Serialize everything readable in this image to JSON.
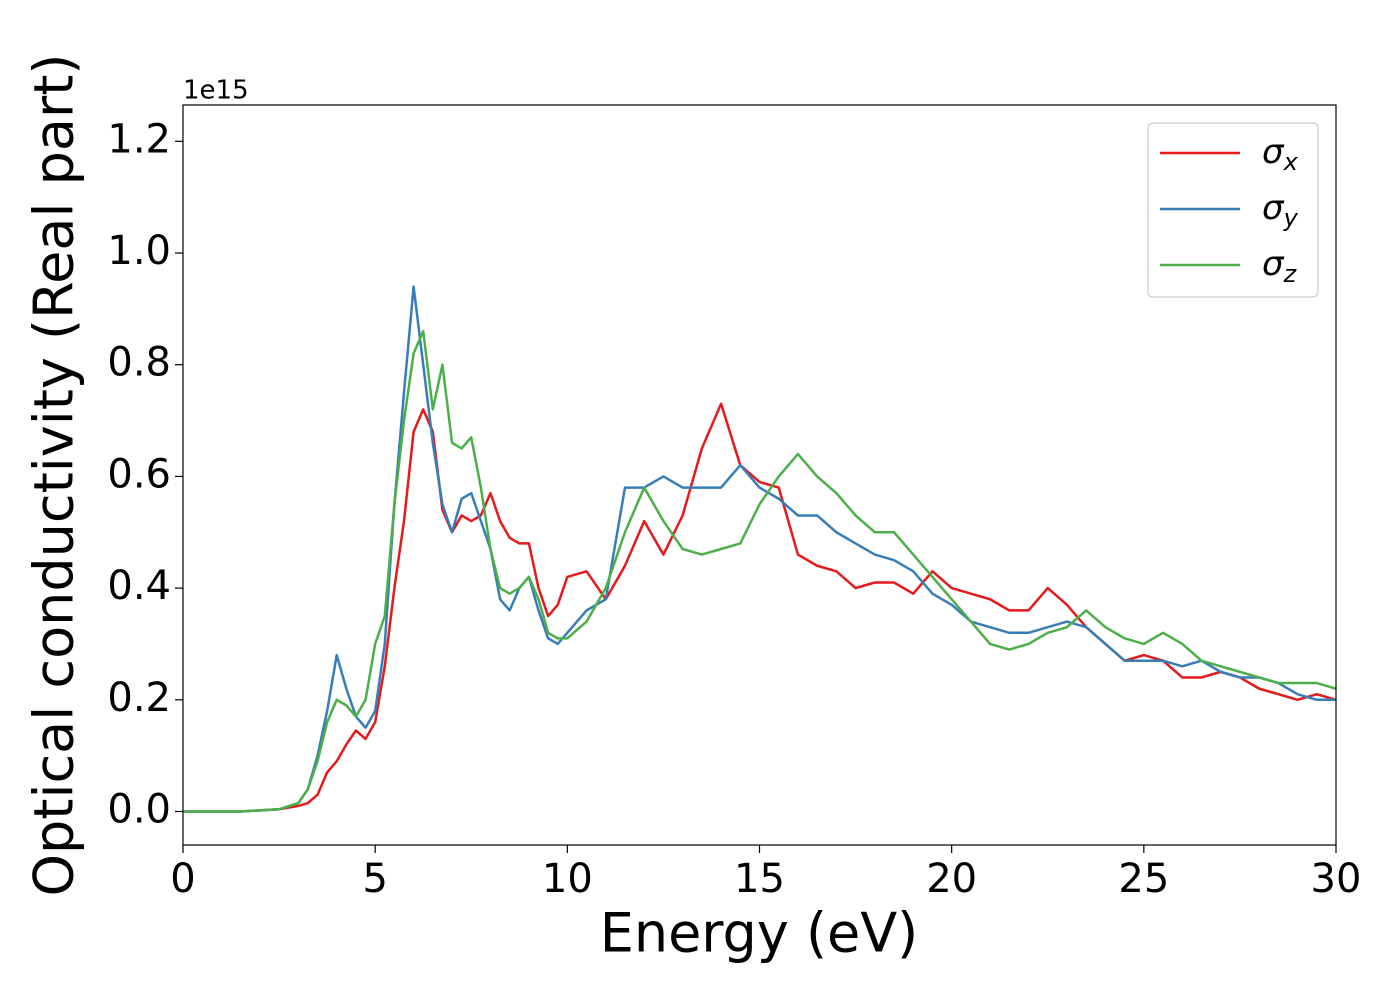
{
  "chart_data": {
    "type": "line",
    "xlabel": "Energy (eV)",
    "ylabel": "Optical conductivity (Real part)",
    "y_offset_label": "1e15",
    "xlim": [
      0,
      30
    ],
    "ylim": [
      -0.06,
      1.265
    ],
    "xticks": [
      0,
      5,
      10,
      15,
      20,
      25,
      30
    ],
    "yticks": [
      {
        "value": 0,
        "label": "0.0"
      },
      0.2,
      0.4,
      0.6,
      0.8,
      {
        "value": 1,
        "label": "1.0"
      },
      1.2
    ],
    "legend": "upper right",
    "x": [
      0,
      0.5,
      1,
      1.5,
      2,
      2.5,
      3,
      3.25,
      3.5,
      3.75,
      4,
      4.25,
      4.5,
      4.75,
      5,
      5.25,
      5.5,
      5.75,
      6,
      6.25,
      6.5,
      6.75,
      7,
      7.25,
      7.5,
      7.75,
      8,
      8.25,
      8.5,
      8.75,
      9,
      9.25,
      9.5,
      9.75,
      10,
      10.5,
      11,
      11.5,
      12,
      12.5,
      13,
      13.5,
      14,
      14.5,
      15,
      15.5,
      16,
      16.5,
      17,
      17.5,
      18,
      18.5,
      19,
      19.5,
      20,
      20.5,
      21,
      21.5,
      22,
      22.5,
      23,
      23.5,
      24,
      24.5,
      25,
      25.5,
      26,
      26.5,
      27,
      27.5,
      28,
      28.5,
      29,
      29.5,
      30
    ],
    "series": [
      {
        "name": "σx",
        "color": "#e41a1c",
        "values": [
          0,
          0,
          0,
          0,
          0.002,
          0.004,
          0.01,
          0.015,
          0.03,
          0.07,
          0.09,
          0.12,
          0.145,
          0.13,
          0.16,
          0.26,
          0.4,
          0.52,
          0.68,
          0.72,
          0.68,
          0.54,
          0.5,
          0.53,
          0.52,
          0.53,
          0.57,
          0.52,
          0.49,
          0.48,
          0.48,
          0.4,
          0.35,
          0.37,
          0.42,
          0.43,
          0.38,
          0.44,
          0.52,
          0.46,
          0.53,
          0.65,
          0.73,
          0.62,
          0.59,
          0.58,
          0.46,
          0.44,
          0.43,
          0.4,
          0.41,
          0.41,
          0.39,
          0.43,
          0.4,
          0.39,
          0.38,
          0.36,
          0.36,
          0.4,
          0.37,
          0.33,
          0.3,
          0.27,
          0.28,
          0.27,
          0.24,
          0.24,
          0.25,
          0.24,
          0.22,
          0.21,
          0.2,
          0.21,
          0.2
        ]
      },
      {
        "name": "σy",
        "color": "#377eb8",
        "values": [
          0,
          0,
          0,
          0,
          0.002,
          0.004,
          0.015,
          0.04,
          0.1,
          0.18,
          0.28,
          0.22,
          0.17,
          0.15,
          0.18,
          0.3,
          0.55,
          0.75,
          0.94,
          0.8,
          0.66,
          0.55,
          0.5,
          0.56,
          0.57,
          0.52,
          0.47,
          0.38,
          0.36,
          0.4,
          0.42,
          0.36,
          0.31,
          0.3,
          0.32,
          0.36,
          0.38,
          0.58,
          0.58,
          0.6,
          0.58,
          0.58,
          0.58,
          0.62,
          0.58,
          0.56,
          0.53,
          0.53,
          0.5,
          0.48,
          0.46,
          0.45,
          0.43,
          0.39,
          0.37,
          0.34,
          0.33,
          0.32,
          0.32,
          0.33,
          0.34,
          0.33,
          0.3,
          0.27,
          0.27,
          0.27,
          0.26,
          0.27,
          0.25,
          0.24,
          0.24,
          0.23,
          0.21,
          0.2,
          0.2
        ]
      },
      {
        "name": "σz",
        "color": "#4daf4a",
        "values": [
          0,
          0,
          0,
          0,
          0.002,
          0.004,
          0.015,
          0.04,
          0.09,
          0.16,
          0.2,
          0.19,
          0.17,
          0.2,
          0.3,
          0.35,
          0.55,
          0.7,
          0.82,
          0.86,
          0.72,
          0.8,
          0.66,
          0.65,
          0.67,
          0.58,
          0.47,
          0.4,
          0.39,
          0.4,
          0.42,
          0.38,
          0.32,
          0.31,
          0.31,
          0.34,
          0.4,
          0.5,
          0.58,
          0.52,
          0.47,
          0.46,
          0.47,
          0.48,
          0.55,
          0.6,
          0.64,
          0.6,
          0.57,
          0.53,
          0.5,
          0.5,
          0.46,
          0.42,
          0.38,
          0.34,
          0.3,
          0.29,
          0.3,
          0.32,
          0.33,
          0.36,
          0.33,
          0.31,
          0.3,
          0.32,
          0.3,
          0.27,
          0.26,
          0.25,
          0.24,
          0.23,
          0.23,
          0.23,
          0.22
        ]
      }
    ]
  }
}
